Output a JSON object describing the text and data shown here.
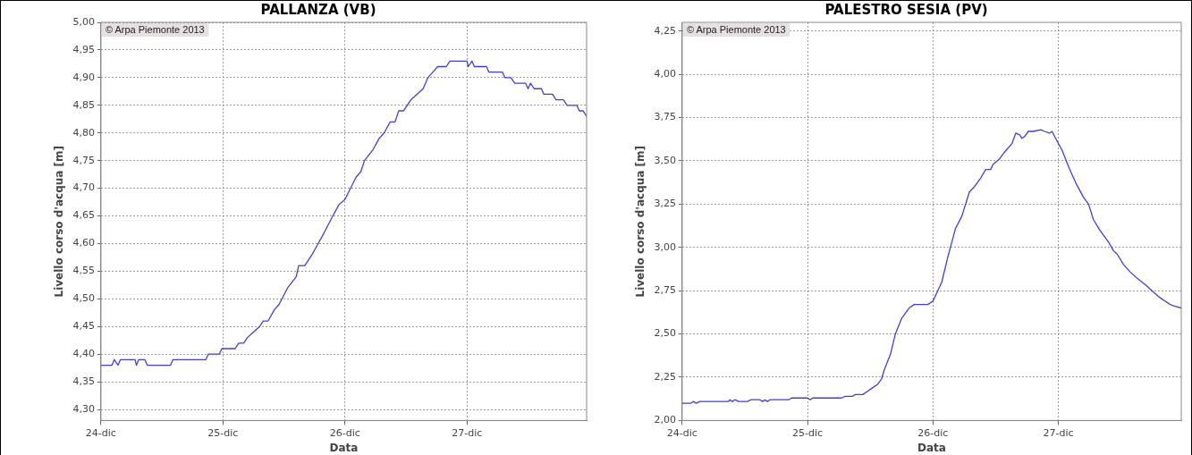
{
  "chart_data": [
    {
      "type": "line",
      "title": "PALLANZA (VB)",
      "xlabel": "Data",
      "ylabel": "Livello corso d'acqua [m]",
      "annotations": [
        "© Arpa Piemonte 2013"
      ],
      "grid": true,
      "line_style": "solid",
      "marker": "none",
      "xlim": [
        "--12-24",
        "--12-27T23:31"
      ],
      "xticks": [
        {
          "value": "--12-24",
          "label": "24-dic"
        },
        {
          "value": "--12-25",
          "label": "25-dic"
        },
        {
          "value": "--12-26",
          "label": "26-dic"
        },
        {
          "value": "--12-27",
          "label": "27-dic"
        }
      ],
      "ylim": [
        4.28,
        5.0
      ],
      "yticks": [
        {
          "value": 4.3,
          "label": "4,30"
        },
        {
          "value": 4.35,
          "label": "4,35"
        },
        {
          "value": 4.4,
          "label": "4,40"
        },
        {
          "value": 4.45,
          "label": "4,45"
        },
        {
          "value": 4.5,
          "label": "4,50"
        },
        {
          "value": 4.55,
          "label": "4,55"
        },
        {
          "value": 4.6,
          "label": "4,60"
        },
        {
          "value": 4.65,
          "label": "4,65"
        },
        {
          "value": 4.7,
          "label": "4,70"
        },
        {
          "value": 4.75,
          "label": "4,75"
        },
        {
          "value": 4.8,
          "label": "4,80"
        },
        {
          "value": 4.85,
          "label": "4,85"
        },
        {
          "value": 4.9,
          "label": "4,90"
        },
        {
          "value": 4.95,
          "label": "4,95"
        },
        {
          "value": 5.0,
          "label": "5,00"
        }
      ],
      "x": [
        "--12-24T00:00",
        "--12-24T02:10",
        "--12-24T02:38",
        "--12-24T03:22",
        "--12-24T03:50",
        "--12-24T06:43",
        "--12-24T06:58",
        "--12-24T07:26",
        "--12-24T08:38",
        "--12-24T09:07",
        "--12-24T13:41",
        "--12-24T14:10",
        "--12-24T20:38",
        "--12-24T21:07",
        "--12-24T23:17",
        "--12-24T23:46",
        "--12-25T02:24",
        "--12-25T03:07",
        "--12-25T04:05",
        "--12-25T04:48",
        "--12-25T06:00",
        "--12-25T07:12",
        "--12-25T07:55",
        "--12-25T08:53",
        "--12-25T10:05",
        "--12-25T11:02",
        "--12-25T12:43",
        "--12-25T14:24",
        "--12-25T14:53",
        "--12-25T16:05",
        "--12-25T17:31",
        "--12-25T18:43",
        "--12-25T19:55",
        "--12-25T21:36",
        "--12-25T22:48",
        "--12-26T00:00",
        "--12-26T02:10",
        "--12-26T03:07",
        "--12-26T03:50",
        "--12-26T05:31",
        "--12-26T06:43",
        "--12-26T07:41",
        "--12-26T08:53",
        "--12-26T09:50",
        "--12-26T10:34",
        "--12-26T11:31",
        "--12-26T12:58",
        "--12-26T14:10",
        "--12-26T15:22",
        "--12-26T16:19",
        "--12-26T17:17",
        "--12-26T18:14",
        "--12-26T19:55",
        "--12-26T20:38",
        "--12-27T00:00",
        "--12-27T00:14",
        "--12-27T00:58",
        "--12-27T01:26",
        "--12-27T03:50",
        "--12-27T04:19",
        "--12-27T06:58",
        "--12-27T07:26",
        "--12-27T08:38",
        "--12-27T09:22",
        "--12-27T11:31",
        "--12-27T12:00",
        "--12-27T12:29",
        "--12-27T13:12",
        "--12-27T14:38",
        "--12-27T15:07",
        "--12-27T16:48",
        "--12-27T17:31",
        "--12-27T18:58",
        "--12-27T19:41",
        "--12-27T21:36",
        "--12-27T22:05",
        "--12-27T22:48",
        "--12-27T23:31"
      ],
      "series": [
        {
          "color": "#4040d0",
          "values": [
            4.38,
            4.38,
            4.39,
            4.38,
            4.39,
            4.39,
            4.38,
            4.39,
            4.39,
            4.38,
            4.38,
            4.39,
            4.39,
            4.4,
            4.4,
            4.41,
            4.41,
            4.42,
            4.42,
            4.43,
            4.44,
            4.45,
            4.46,
            4.46,
            4.48,
            4.49,
            4.52,
            4.54,
            4.56,
            4.56,
            4.58,
            4.6,
            4.62,
            4.65,
            4.67,
            4.68,
            4.72,
            4.73,
            4.75,
            4.77,
            4.79,
            4.8,
            4.82,
            4.82,
            4.84,
            4.84,
            4.86,
            4.87,
            4.88,
            4.9,
            4.91,
            4.92,
            4.92,
            4.93,
            4.93,
            4.92,
            4.93,
            4.92,
            4.92,
            4.91,
            4.91,
            4.9,
            4.9,
            4.89,
            4.89,
            4.88,
            4.89,
            4.88,
            4.88,
            4.87,
            4.87,
            4.86,
            4.86,
            4.85,
            4.85,
            4.84,
            4.84,
            4.83
          ]
        }
      ]
    },
    {
      "type": "line",
      "title": "PALESTRO SESIA (PV)",
      "xlabel": "Data",
      "ylabel": "Livello corso d'acqua [m]",
      "annotations": [
        "© Arpa Piemonte 2013"
      ],
      "grid": true,
      "line_style": "solid",
      "marker": "none",
      "xlim": [
        "--12-24",
        "--12-27T23:31"
      ],
      "xticks": [
        {
          "value": "--12-24",
          "label": "24-dic"
        },
        {
          "value": "--12-25",
          "label": "25-dic"
        },
        {
          "value": "--12-26",
          "label": "26-dic"
        },
        {
          "value": "--12-27",
          "label": "27-dic"
        }
      ],
      "ylim": [
        2.0,
        4.3
      ],
      "yticks": [
        {
          "value": 2.0,
          "label": "2,00"
        },
        {
          "value": 2.25,
          "label": "2,25"
        },
        {
          "value": 2.5,
          "label": "2,50"
        },
        {
          "value": 2.75,
          "label": "2,75"
        },
        {
          "value": 3.0,
          "label": "3,00"
        },
        {
          "value": 3.25,
          "label": "3,25"
        },
        {
          "value": 3.5,
          "label": "3,50"
        },
        {
          "value": 3.75,
          "label": "3,75"
        },
        {
          "value": 4.0,
          "label": "4,00"
        },
        {
          "value": 4.25,
          "label": "4,25"
        }
      ],
      "x": [
        "--12-24T00:00",
        "--12-24T01:41",
        "--12-24T02:10",
        "--12-24T02:38",
        "--12-24T03:22",
        "--12-24T08:53",
        "--12-24T09:07",
        "--12-24T09:36",
        "--12-24T10:05",
        "--12-24T10:48",
        "--12-24T12:29",
        "--12-24T13:12",
        "--12-24T14:53",
        "--12-24T15:22",
        "--12-24T15:50",
        "--12-24T16:19",
        "--12-24T16:48",
        "--12-24T20:24",
        "--12-24T20:53",
        "--12-25T00:00",
        "--12-25T00:29",
        "--12-25T00:58",
        "--12-25T06:29",
        "--12-25T07:12",
        "--12-25T08:38",
        "--12-25T09:07",
        "--12-25T10:34",
        "--12-25T11:31",
        "--12-25T12:29",
        "--12-25T13:26",
        "--12-25T14:10",
        "--12-25T14:38",
        "--12-25T15:50",
        "--12-25T16:48",
        "--12-25T18:00",
        "--12-25T19:26",
        "--12-25T20:24",
        "--12-25T23:02",
        "--12-26T00:00",
        "--12-26T01:41",
        "--12-26T02:53",
        "--12-26T04:19",
        "--12-26T05:31",
        "--12-26T06:58",
        "--12-26T07:55",
        "--12-26T09:07",
        "--12-26T10:05",
        "--12-26T11:02",
        "--12-26T11:31",
        "--12-26T12:43",
        "--12-26T13:41",
        "--12-26T15:07",
        "--12-26T15:50",
        "--12-26T16:34",
        "--12-26T17:02",
        "--12-26T17:31",
        "--12-26T18:14",
        "--12-26T19:12",
        "--12-26T20:38",
        "--12-26T21:22",
        "--12-26T22:19",
        "--12-26T22:48",
        "--12-26T23:17",
        "--12-27T00:00",
        "--12-27T00:43",
        "--12-27T02:10",
        "--12-27T03:22",
        "--12-27T04:48",
        "--12-27T05:46",
        "--12-27T06:43",
        "--12-27T07:55",
        "--12-27T09:36",
        "--12-27T10:34",
        "--12-27T11:17",
        "--12-27T12:29",
        "--12-27T13:41",
        "--12-27T15:07",
        "--12-27T16:48",
        "--12-27T18:14",
        "--12-27T19:26",
        "--12-27T20:24",
        "--12-27T21:22",
        "--12-27T22:19",
        "--12-27T23:31"
      ],
      "series": [
        {
          "color": "#4040d0",
          "values": [
            2.1,
            2.1,
            2.11,
            2.1,
            2.11,
            2.11,
            2.12,
            2.11,
            2.12,
            2.11,
            2.11,
            2.12,
            2.12,
            2.11,
            2.12,
            2.11,
            2.12,
            2.12,
            2.13,
            2.13,
            2.12,
            2.13,
            2.13,
            2.14,
            2.14,
            2.15,
            2.15,
            2.17,
            2.19,
            2.21,
            2.24,
            2.29,
            2.38,
            2.5,
            2.59,
            2.65,
            2.67,
            2.67,
            2.69,
            2.8,
            2.95,
            3.11,
            3.18,
            3.32,
            3.35,
            3.4,
            3.45,
            3.45,
            3.48,
            3.51,
            3.55,
            3.6,
            3.66,
            3.65,
            3.63,
            3.64,
            3.67,
            3.67,
            3.68,
            3.67,
            3.66,
            3.67,
            3.64,
            3.6,
            3.56,
            3.45,
            3.37,
            3.29,
            3.25,
            3.16,
            3.1,
            3.03,
            2.98,
            2.96,
            2.9,
            2.86,
            2.82,
            2.78,
            2.74,
            2.71,
            2.69,
            2.67,
            2.66,
            2.65
          ]
        }
      ]
    }
  ]
}
